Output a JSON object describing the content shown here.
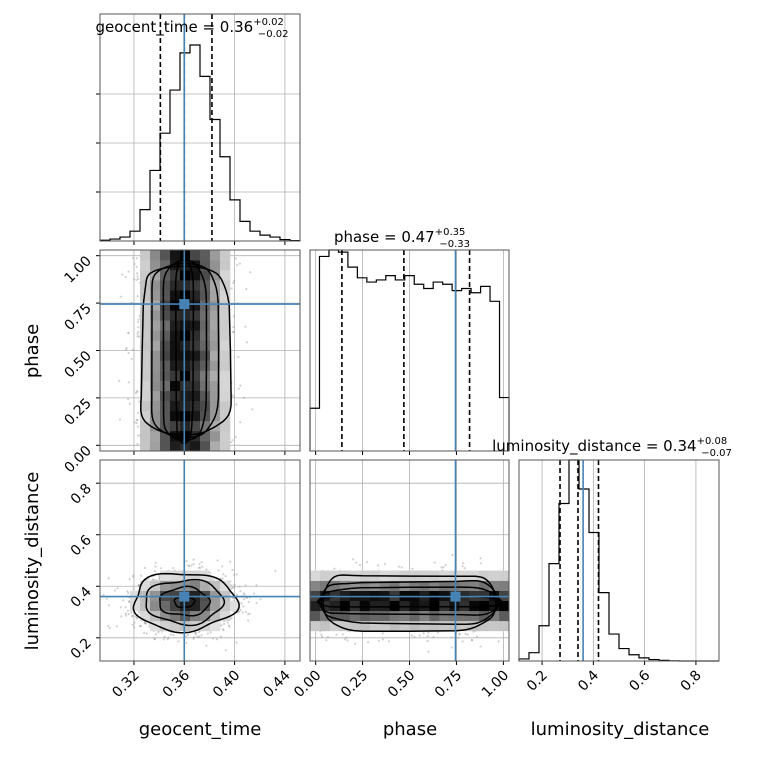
{
  "chart_data": {
    "type": "corner",
    "parameters": [
      {
        "name": "geocent_time",
        "title": {
          "prefix": "geocent_time = ",
          "value": "0.36",
          "upper": "+0.02",
          "lower": "−0.02"
        },
        "range": [
          0.293,
          0.452
        ],
        "ticks": [
          "0.32",
          "0.36",
          "0.40",
          "0.44"
        ],
        "tick_values": [
          0.32,
          0.36,
          0.4,
          0.44
        ],
        "quantiles": [
          0.341,
          0.36,
          0.382
        ],
        "truth": 0.36,
        "hist_values": [
          0.004,
          0.01,
          0.02,
          0.05,
          0.16,
          0.36,
          0.55,
          0.77,
          0.96,
          1.0,
          0.84,
          0.62,
          0.43,
          0.21,
          0.1,
          0.05,
          0.03,
          0.02,
          0.007,
          0.002
        ]
      },
      {
        "name": "phase",
        "title": {
          "prefix": "phase = ",
          "value": "0.47",
          "upper": "+0.35",
          "lower": "−0.33"
        },
        "range": [
          -0.03,
          1.03
        ],
        "ticks": [
          "0.00",
          "0.25",
          "0.50",
          "0.75",
          "1.00"
        ],
        "tick_values": [
          0.0,
          0.25,
          0.5,
          0.75,
          1.0
        ],
        "quantiles": [
          0.14,
          0.47,
          0.82
        ],
        "truth": 0.745,
        "hist_values": [
          0.2,
          0.91,
          0.94,
          0.93,
          0.86,
          0.81,
          0.79,
          0.8,
          0.82,
          0.8,
          0.82,
          0.78,
          0.76,
          0.79,
          0.78,
          0.75,
          0.76,
          0.74,
          0.77,
          0.7,
          0.25
        ]
      },
      {
        "name": "luminosity_distance",
        "title": {
          "prefix": "luminosity_distance = ",
          "value": "0.34",
          "upper": "+0.08",
          "lower": "−0.07"
        },
        "range": [
          0.11,
          0.89
        ],
        "ticks": [
          "0.2",
          "0.4",
          "0.6",
          "0.8"
        ],
        "tick_values": [
          0.2,
          0.4,
          0.6,
          0.8
        ],
        "quantiles": [
          0.27,
          0.34,
          0.42
        ],
        "truth": 0.36,
        "hist_values": [
          0.01,
          0.04,
          0.17,
          0.47,
          0.76,
          0.97,
          0.83,
          0.62,
          0.33,
          0.13,
          0.06,
          0.03,
          0.015,
          0.007,
          0.003,
          0.001,
          0,
          0,
          0,
          0
        ]
      }
    ],
    "pairs": [
      {
        "x": "geocent_time",
        "y": "phase",
        "center": [
          0.36,
          0.5
        ],
        "spread": [
          0.018,
          0.29
        ]
      },
      {
        "x": "geocent_time",
        "y": "luminosity_distance",
        "center": [
          0.36,
          0.34
        ],
        "spread": [
          0.02,
          0.055
        ]
      },
      {
        "x": "phase",
        "y": "luminosity_distance",
        "center": [
          0.5,
          0.34
        ],
        "spread": [
          0.29,
          0.055
        ]
      }
    ],
    "grid": true,
    "truth_color": "#4682b4"
  }
}
